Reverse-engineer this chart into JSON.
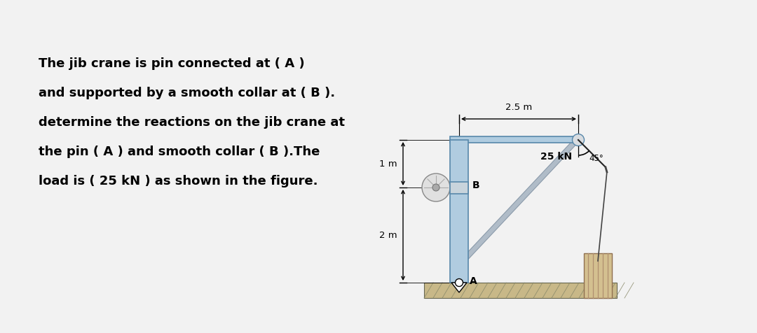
{
  "text_lines": [
    "The jib crane is pin connected at ( A )",
    "and supported by a smooth collar at ( B ).",
    "determine the reactions on the jib crane at",
    "the pin ( A ) and smooth collar ( B ).The",
    "load is ( 25 kN ) as shown in the figure."
  ],
  "text_fontsize": 13.0,
  "fig_bg": "#f2f2f2",
  "dim_25m_label": "2.5 m",
  "dim_1m_label": "1 m",
  "dim_2m_label": "2 m",
  "angle_label": "45°",
  "load_label": "25 kN",
  "label_A": "A",
  "label_B": "B",
  "pole_color": "#b0cce0",
  "beam_color": "#b0cce0",
  "ground_top_color": "#c8b890",
  "ground_fill_color": "#b0a080",
  "load_block_color": "#d4c090",
  "text_color": "#000000"
}
